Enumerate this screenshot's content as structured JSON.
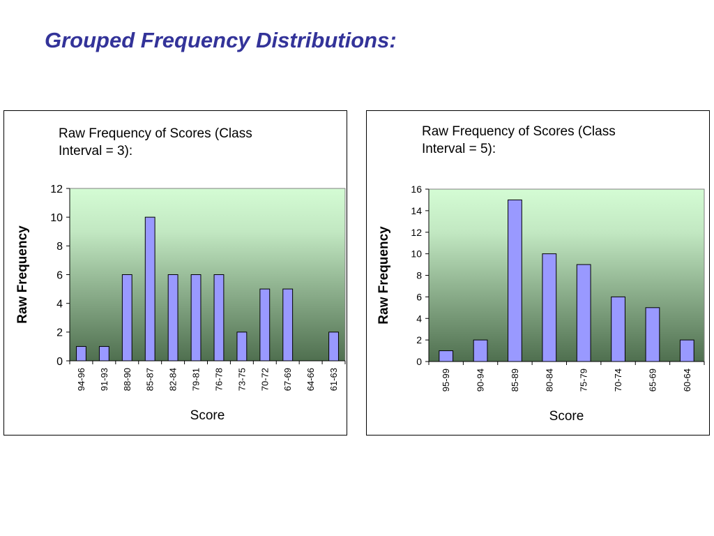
{
  "page": {
    "title": "Grouped Frequency Distributions:"
  },
  "chart_data": [
    {
      "type": "bar",
      "title": "Raw Frequency of Scores (Class Interval = 3):",
      "xlabel": "Score",
      "ylabel": "Raw Frequency",
      "categories": [
        "94-96",
        "91-93",
        "88-90",
        "85-87",
        "82-84",
        "79-81",
        "76-78",
        "73-75",
        "70-72",
        "67-69",
        "64-66",
        "61-63"
      ],
      "values": [
        1,
        1,
        6,
        10,
        6,
        6,
        6,
        2,
        5,
        5,
        0,
        2
      ],
      "ylim": [
        0,
        12
      ],
      "yticks": [
        0,
        2,
        4,
        6,
        8,
        10,
        12
      ],
      "bar_color": "#9999ff",
      "plot_background": "gradient light green (top) to dark green (bottom)",
      "grid": false,
      "legend": "none"
    },
    {
      "type": "bar",
      "title": "Raw Frequency of Scores (Class Interval = 5):",
      "xlabel": "Score",
      "ylabel": "Raw Frequency",
      "categories": [
        "95-99",
        "90-94",
        "85-89",
        "80-84",
        "75-79",
        "70-74",
        "65-69",
        "60-64"
      ],
      "values": [
        1,
        2,
        15,
        10,
        9,
        6,
        5,
        2
      ],
      "ylim": [
        0,
        16
      ],
      "yticks": [
        0,
        2,
        4,
        6,
        8,
        10,
        12,
        14,
        16
      ],
      "bar_color": "#9999ff",
      "plot_background": "gradient light green (top) to dark green (bottom)",
      "grid": false,
      "legend": "none"
    }
  ]
}
